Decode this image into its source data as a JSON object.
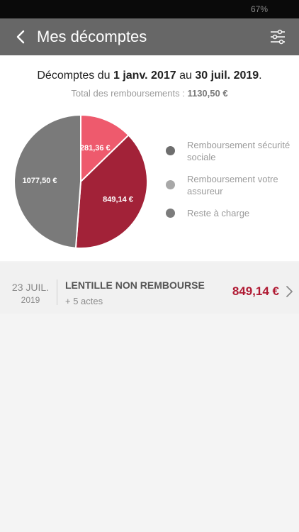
{
  "status": {
    "battery": "67%"
  },
  "header": {
    "title": "Mes décomptes",
    "back_icon": "chevron-left-icon",
    "filter_icon": "sliders-icon"
  },
  "summary": {
    "prefix": "Décomptes du ",
    "start": "1 janv. 2017",
    "middle": " au ",
    "end": "30 juil. 2019",
    "suffix": ".",
    "total_label": "Total des remboursements : ",
    "total_value": "1130,50 €"
  },
  "chart_data": {
    "type": "pie",
    "slices": [
      {
        "label": "Remboursement sécurité sociale",
        "value": 1077.5,
        "value_label": "1077,50 €",
        "color": "#7a7a7a"
      },
      {
        "label": "Remboursement votre assureur",
        "value": 849.14,
        "value_label": "849,14 €",
        "color": "#a22238"
      },
      {
        "label": "Reste à charge",
        "value": 281.36,
        "value_label": "281,36 €",
        "color": "#ee5a6d"
      }
    ]
  },
  "legend": [
    {
      "label": "Remboursement sécurité sociale",
      "color": "#6e6e6e"
    },
    {
      "label": "Remboursement votre assureur",
      "color": "#a8a8a8"
    },
    {
      "label": "Reste à charge",
      "color": "#7c7c7c"
    }
  ],
  "items": [
    {
      "day": "23 JUIL.",
      "year": "2019",
      "label": "LENTILLE NON REMBOURSE",
      "sub": "+ 5 actes",
      "amount": "849,14 €"
    }
  ]
}
